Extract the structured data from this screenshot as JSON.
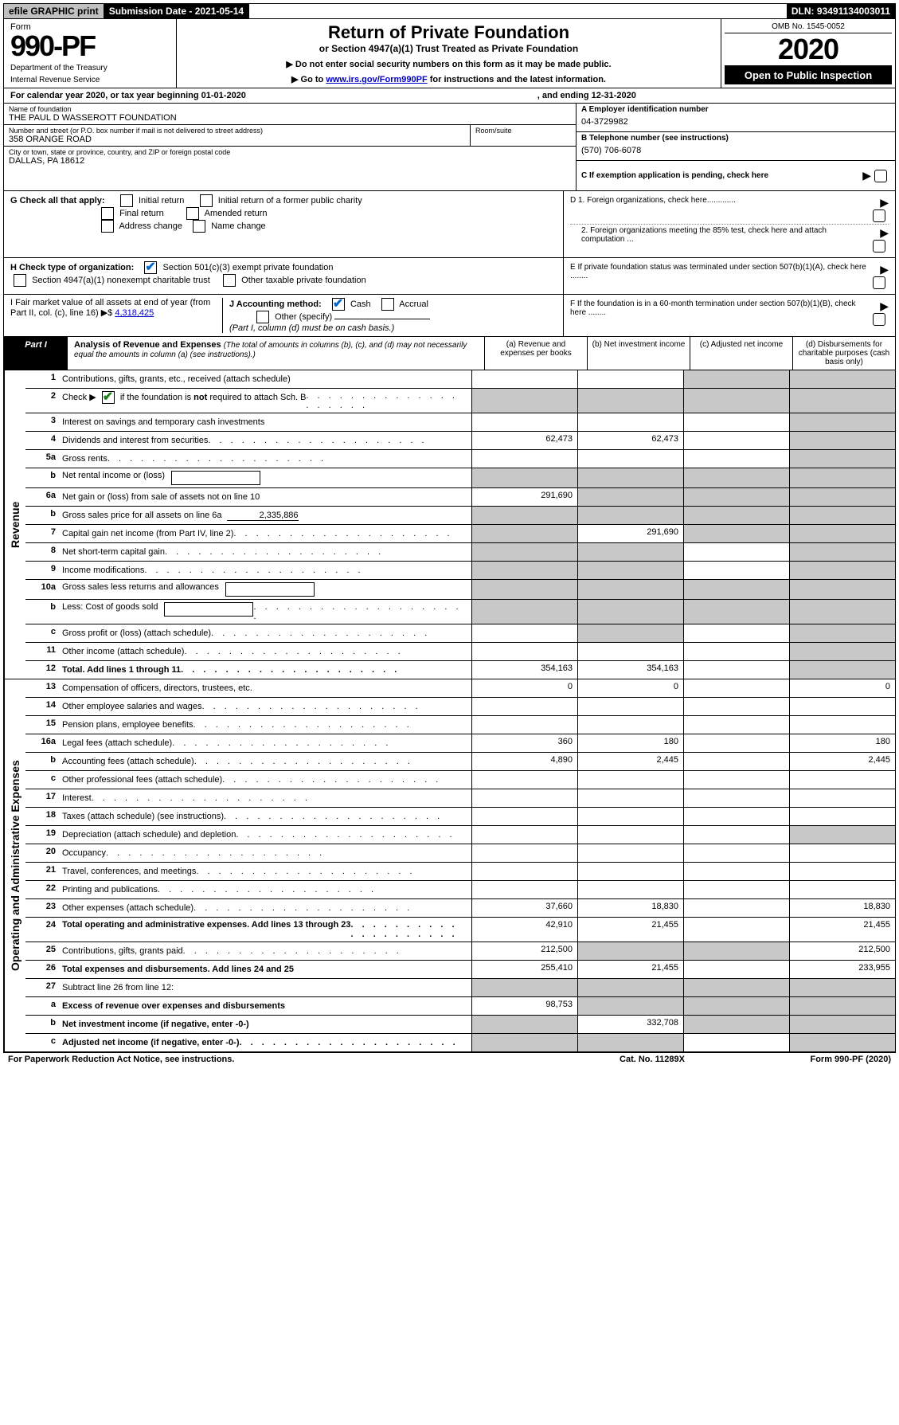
{
  "topbar": {
    "efile": "efile GRAPHIC print",
    "submission": "Submission Date - 2021-05-14",
    "dln": "DLN: 93491134003011"
  },
  "header": {
    "form_label": "Form",
    "form_no": "990-PF",
    "dept": "Department of the Treasury",
    "irs": "Internal Revenue Service",
    "title": "Return of Private Foundation",
    "subtitle": "or Section 4947(a)(1) Trust Treated as Private Foundation",
    "notice1": "▶ Do not enter social security numbers on this form as it may be made public.",
    "notice2_pre": "▶ Go to ",
    "notice2_link": "www.irs.gov/Form990PF",
    "notice2_post": " for instructions and the latest information.",
    "omb": "OMB No. 1545-0052",
    "year": "2020",
    "open": "Open to Public Inspection"
  },
  "calendar": {
    "left": "For calendar year 2020, or tax year beginning 01-01-2020",
    "right": ", and ending 12-31-2020"
  },
  "info": {
    "name_label": "Name of foundation",
    "name": "THE PAUL D WASSEROTT FOUNDATION",
    "ein_label": "A Employer identification number",
    "ein": "04-3729982",
    "addr_label": "Number and street (or P.O. box number if mail is not delivered to street address)",
    "addr": "358 ORANGE ROAD",
    "room_label": "Room/suite",
    "phone_label": "B Telephone number (see instructions)",
    "phone": "(570) 706-6078",
    "city_label": "City or town, state or province, country, and ZIP or foreign postal code",
    "city": "DALLAS, PA  18612",
    "c_label": "C If exemption application is pending, check here"
  },
  "checks": {
    "g_label": "G Check all that apply:",
    "g1": "Initial return",
    "g2": "Initial return of a former public charity",
    "g3": "Final return",
    "g4": "Amended return",
    "g5": "Address change",
    "g6": "Name change",
    "h_label": "H Check type of organization:",
    "h1": "Section 501(c)(3) exempt private foundation",
    "h2": "Section 4947(a)(1) nonexempt charitable trust",
    "h3": "Other taxable private foundation",
    "i_label": "I Fair market value of all assets at end of year (from Part II, col. (c), line 16) ▶$",
    "i_val": "4,318,425",
    "j_label": "J Accounting method:",
    "j1": "Cash",
    "j2": "Accrual",
    "j3": "Other (specify)",
    "j_note": "(Part I, column (d) must be on cash basis.)",
    "d1": "D 1. Foreign organizations, check here.............",
    "d2": "2. Foreign organizations meeting the 85% test, check here and attach computation ...",
    "e": "E  If private foundation status was terminated under section 507(b)(1)(A), check here ........",
    "f": "F  If the foundation is in a 60-month termination under section 507(b)(1)(B), check here ........"
  },
  "part1": {
    "label": "Part I",
    "title": "Analysis of Revenue and Expenses",
    "note": "(The total of amounts in columns (b), (c), and (d) may not necessarily equal the amounts in column (a) (see instructions).)",
    "cols": {
      "a": "(a)   Revenue and expenses per books",
      "b": "(b)   Net investment income",
      "c": "(c)   Adjusted net income",
      "d": "(d)   Disbursements for charitable purposes (cash basis only)"
    }
  },
  "revenue_label": "Revenue",
  "expenses_label": "Operating and Administrative Expenses",
  "rows": [
    {
      "no": "1",
      "desc": "Contributions, gifts, grants, etc., received (attach schedule)",
      "a": "",
      "b": "",
      "c": "shade",
      "d": "shade"
    },
    {
      "no": "2",
      "desc": "Check ▶ [✔] if the foundation is not required to attach Sch. B",
      "hasCheck": true,
      "dots": true,
      "a": "shade",
      "b": "shade",
      "c": "shade",
      "d": "shade"
    },
    {
      "no": "3",
      "desc": "Interest on savings and temporary cash investments",
      "a": "",
      "b": "",
      "c": "",
      "d": "shade"
    },
    {
      "no": "4",
      "desc": "Dividends and interest from securities",
      "dots": true,
      "a": "62,473",
      "b": "62,473",
      "c": "",
      "d": "shade"
    },
    {
      "no": "5a",
      "desc": "Gross rents",
      "dots": true,
      "a": "",
      "b": "",
      "c": "",
      "d": "shade"
    },
    {
      "no": "b",
      "desc": "Net rental income or (loss)",
      "inlineBox": true,
      "a": "shade",
      "b": "shade",
      "c": "shade",
      "d": "shade"
    },
    {
      "no": "6a",
      "desc": "Net gain or (loss) from sale of assets not on line 10",
      "a": "291,690",
      "b": "shade",
      "c": "shade",
      "d": "shade"
    },
    {
      "no": "b",
      "desc": "Gross sales price for all assets on line 6a",
      "ulVal": "2,335,886",
      "a": "shade",
      "b": "shade",
      "c": "shade",
      "d": "shade"
    },
    {
      "no": "7",
      "desc": "Capital gain net income (from Part IV, line 2)",
      "dots": true,
      "a": "shade",
      "b": "291,690",
      "c": "shade",
      "d": "shade"
    },
    {
      "no": "8",
      "desc": "Net short-term capital gain",
      "dots": true,
      "a": "shade",
      "b": "shade",
      "c": "",
      "d": "shade"
    },
    {
      "no": "9",
      "desc": "Income modifications",
      "dots": true,
      "a": "shade",
      "b": "shade",
      "c": "",
      "d": "shade"
    },
    {
      "no": "10a",
      "desc": "Gross sales less returns and allowances",
      "inlineBox": true,
      "a": "shade",
      "b": "shade",
      "c": "shade",
      "d": "shade"
    },
    {
      "no": "b",
      "desc": "Less: Cost of goods sold",
      "dots": true,
      "inlineBox": true,
      "a": "shade",
      "b": "shade",
      "c": "shade",
      "d": "shade"
    },
    {
      "no": "c",
      "desc": "Gross profit or (loss) (attach schedule)",
      "dots": true,
      "a": "",
      "b": "shade",
      "c": "",
      "d": "shade"
    },
    {
      "no": "11",
      "desc": "Other income (attach schedule)",
      "dots": true,
      "a": "",
      "b": "",
      "c": "",
      "d": "shade"
    },
    {
      "no": "12",
      "desc": "Total. Add lines 1 through 11",
      "bold": true,
      "dots": true,
      "a": "354,163",
      "b": "354,163",
      "c": "",
      "d": "shade"
    }
  ],
  "exp_rows": [
    {
      "no": "13",
      "desc": "Compensation of officers, directors, trustees, etc.",
      "a": "0",
      "b": "0",
      "c": "",
      "d": "0"
    },
    {
      "no": "14",
      "desc": "Other employee salaries and wages",
      "dots": true,
      "a": "",
      "b": "",
      "c": "",
      "d": ""
    },
    {
      "no": "15",
      "desc": "Pension plans, employee benefits",
      "dots": true,
      "a": "",
      "b": "",
      "c": "",
      "d": ""
    },
    {
      "no": "16a",
      "desc": "Legal fees (attach schedule)",
      "dots": true,
      "a": "360",
      "b": "180",
      "c": "",
      "d": "180"
    },
    {
      "no": "b",
      "desc": "Accounting fees (attach schedule)",
      "dots": true,
      "a": "4,890",
      "b": "2,445",
      "c": "",
      "d": "2,445"
    },
    {
      "no": "c",
      "desc": "Other professional fees (attach schedule)",
      "dots": true,
      "a": "",
      "b": "",
      "c": "",
      "d": ""
    },
    {
      "no": "17",
      "desc": "Interest",
      "dots": true,
      "a": "",
      "b": "",
      "c": "",
      "d": ""
    },
    {
      "no": "18",
      "desc": "Taxes (attach schedule) (see instructions)",
      "dots": true,
      "a": "",
      "b": "",
      "c": "",
      "d": ""
    },
    {
      "no": "19",
      "desc": "Depreciation (attach schedule) and depletion",
      "dots": true,
      "a": "",
      "b": "",
      "c": "",
      "d": "shade"
    },
    {
      "no": "20",
      "desc": "Occupancy",
      "dots": true,
      "a": "",
      "b": "",
      "c": "",
      "d": ""
    },
    {
      "no": "21",
      "desc": "Travel, conferences, and meetings",
      "dots": true,
      "a": "",
      "b": "",
      "c": "",
      "d": ""
    },
    {
      "no": "22",
      "desc": "Printing and publications",
      "dots": true,
      "a": "",
      "b": "",
      "c": "",
      "d": ""
    },
    {
      "no": "23",
      "desc": "Other expenses (attach schedule)",
      "dots": true,
      "a": "37,660",
      "b": "18,830",
      "c": "",
      "d": "18,830"
    },
    {
      "no": "24",
      "desc": "Total operating and administrative expenses. Add lines 13 through 23",
      "bold": true,
      "dots": true,
      "a": "42,910",
      "b": "21,455",
      "c": "",
      "d": "21,455"
    },
    {
      "no": "25",
      "desc": "Contributions, gifts, grants paid",
      "dots": true,
      "a": "212,500",
      "b": "shade",
      "c": "shade",
      "d": "212,500"
    },
    {
      "no": "26",
      "desc": "Total expenses and disbursements. Add lines 24 and 25",
      "bold": true,
      "a": "255,410",
      "b": "21,455",
      "c": "",
      "d": "233,955"
    },
    {
      "no": "27",
      "desc": "Subtract line 26 from line 12:",
      "a": "shade",
      "b": "shade",
      "c": "shade",
      "d": "shade"
    },
    {
      "no": "a",
      "desc": "Excess of revenue over expenses and disbursements",
      "bold": true,
      "a": "98,753",
      "b": "shade",
      "c": "shade",
      "d": "shade"
    },
    {
      "no": "b",
      "desc": "Net investment income (if negative, enter -0-)",
      "bold": true,
      "a": "shade",
      "b": "332,708",
      "c": "shade",
      "d": "shade"
    },
    {
      "no": "c",
      "desc": "Adjusted net income (if negative, enter -0-)",
      "bold": true,
      "dots": true,
      "a": "shade",
      "b": "shade",
      "c": "",
      "d": "shade"
    }
  ],
  "footer": {
    "left": "For Paperwork Reduction Act Notice, see instructions.",
    "mid": "Cat. No. 11289X",
    "right": "Form 990-PF (2020)"
  }
}
